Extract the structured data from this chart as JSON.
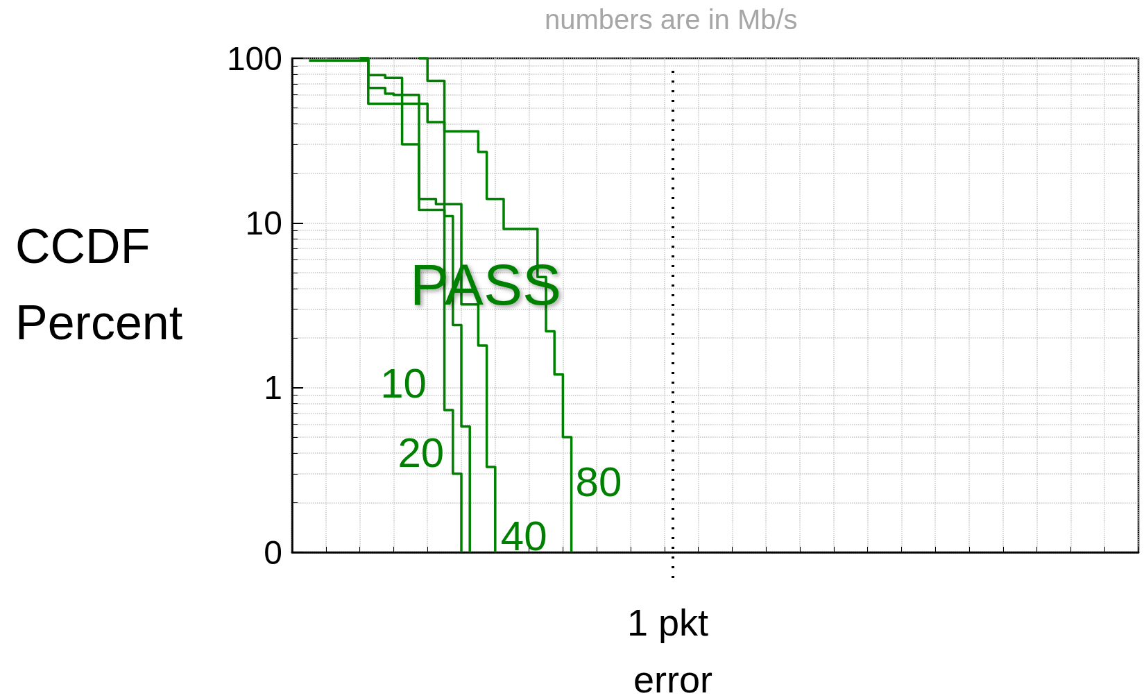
{
  "chart_data": {
    "type": "step",
    "subtitle": "numbers are in Mb/s",
    "ylabel": "CCDF Percent",
    "log": "y",
    "grid": true,
    "legend": false,
    "marker": "none",
    "line_style": "solid",
    "categories": [
      null,
      null,
      null,
      null,
      null,
      null,
      null,
      null,
      null,
      null,
      null,
      null,
      null,
      null,
      null,
      null,
      null,
      null,
      null,
      null,
      null,
      null,
      null,
      null,
      null,
      null,
      null,
      null,
      null,
      null,
      null,
      null,
      null,
      null,
      null,
      null,
      null,
      null,
      null,
      null,
      null,
      null,
      null,
      null,
      null,
      "1 pkt error",
      null,
      null,
      null,
      null,
      null,
      null,
      null,
      null,
      null,
      null,
      null,
      null,
      null,
      null,
      null,
      null,
      null,
      null,
      null,
      null,
      null,
      null,
      null,
      null,
      null,
      null,
      null,
      null,
      null,
      null,
      null,
      null,
      null,
      null,
      null,
      null,
      null,
      null,
      null,
      null,
      null,
      null,
      null,
      null,
      null,
      null,
      null,
      null,
      null,
      null,
      null,
      null,
      null,
      null,
      null
    ],
    "ylim": [
      0.1,
      100
    ],
    "yticks": [
      {
        "value": 0.1,
        "label": "0"
      },
      1,
      10,
      100
    ],
    "ref_lines": [
      {
        "axis": "x",
        "value": "1 pkt error",
        "color": "#000000",
        "line_style": "dotted"
      }
    ],
    "annotations": [
      "PASS"
    ],
    "series": [
      {
        "name": "10",
        "color": "#008000",
        "values": [
          null,
          null,
          null,
          null,
          null,
          null,
          null,
          null,
          null,
          null,
          null,
          null,
          null,
          null,
          null,
          100,
          73,
          73,
          0.73,
          0.3,
          0.1,
          null,
          null,
          null,
          null,
          null,
          null,
          null,
          null,
          null,
          null,
          null,
          null,
          null,
          null,
          null,
          null,
          null,
          null,
          null,
          null,
          null,
          null,
          null,
          null,
          null,
          null,
          null,
          null,
          null,
          null,
          null,
          null,
          null,
          null,
          null,
          null,
          null,
          null,
          null,
          null,
          null,
          null,
          null,
          null,
          null,
          null,
          null,
          null,
          null,
          null,
          null,
          null,
          null,
          null,
          null,
          null,
          null,
          null,
          null,
          null,
          null,
          null,
          null,
          null,
          null,
          null,
          null,
          null,
          null,
          null,
          null,
          null,
          null,
          null,
          null,
          null,
          null,
          null,
          null,
          null
        ]
      },
      {
        "name": "20",
        "color": "#008000",
        "values": [
          null,
          null,
          97,
          97,
          97,
          97,
          97,
          97,
          97,
          79,
          79,
          76,
          76,
          30,
          30,
          12,
          12,
          12,
          11,
          2.4,
          0.58,
          0.1,
          null,
          null,
          null,
          null,
          null,
          null,
          null,
          null,
          null,
          null,
          null,
          null,
          null,
          null,
          null,
          null,
          null,
          null,
          null,
          null,
          null,
          null,
          null,
          null,
          null,
          null,
          null,
          null,
          null,
          null,
          null,
          null,
          null,
          null,
          null,
          null,
          null,
          null,
          null,
          null,
          null,
          null,
          null,
          null,
          null,
          null,
          null,
          null,
          null,
          null,
          null,
          null,
          null,
          null,
          null,
          null,
          null,
          null,
          null,
          null,
          null,
          null,
          null,
          null,
          null,
          null,
          null,
          null,
          null,
          null,
          null,
          null,
          null,
          null,
          null,
          null,
          null,
          null,
          null
        ]
      },
      {
        "name": "40",
        "color": "#008000",
        "values": [
          null,
          null,
          null,
          null,
          null,
          null,
          null,
          null,
          100,
          66,
          66,
          61,
          60,
          60,
          60,
          14,
          14,
          13,
          13,
          13,
          3.2,
          3.2,
          1.8,
          0.33,
          0.1,
          null,
          null,
          null,
          null,
          null,
          null,
          null,
          null,
          null,
          null,
          null,
          null,
          null,
          null,
          null,
          null,
          null,
          null,
          null,
          null,
          null,
          null,
          null,
          null,
          null,
          null,
          null,
          null,
          null,
          null,
          null,
          null,
          null,
          null,
          null,
          null,
          null,
          null,
          null,
          null,
          null,
          null,
          null,
          null,
          null,
          null,
          null,
          null,
          null,
          null,
          null,
          null,
          null,
          null,
          null,
          null,
          null,
          null,
          null,
          null,
          null,
          null,
          null,
          null,
          null,
          null,
          null,
          null,
          null,
          null,
          null,
          null,
          null,
          null,
          null,
          null
        ]
      },
      {
        "name": "80",
        "color": "#008000",
        "values": [
          null,
          null,
          null,
          null,
          null,
          null,
          null,
          null,
          100,
          53,
          53,
          53,
          53,
          53,
          53,
          53,
          41,
          41,
          36,
          36,
          36,
          36,
          27,
          14,
          14,
          9.2,
          9.2,
          9.2,
          9.2,
          4.7,
          2.2,
          1.2,
          0.5,
          0.1,
          null,
          null,
          null,
          null,
          null,
          null,
          null,
          null,
          null,
          null,
          null,
          null,
          null,
          null,
          null,
          null,
          null,
          null,
          null,
          null,
          null,
          null,
          null,
          null,
          null,
          null,
          null,
          null,
          null,
          null,
          null,
          null,
          null,
          null,
          null,
          null,
          null,
          null,
          null,
          null,
          null,
          null,
          null,
          null,
          null,
          null,
          null,
          null,
          null,
          null,
          null,
          null,
          null,
          null,
          null,
          null,
          null,
          null,
          null,
          null,
          null,
          null,
          null,
          null,
          null,
          null,
          null
        ]
      }
    ]
  }
}
